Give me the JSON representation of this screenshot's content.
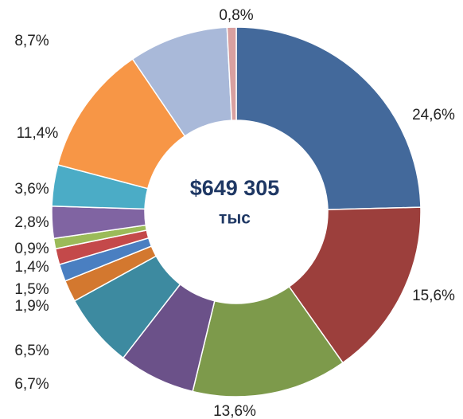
{
  "chart_data": {
    "type": "donut",
    "center_label": [
      "$649 305",
      "тыс"
    ],
    "values": [
      24.6,
      15.6,
      13.6,
      6.7,
      6.5,
      1.9,
      1.5,
      1.4,
      0.9,
      2.8,
      3.6,
      11.4,
      8.7,
      0.8
    ],
    "value_labels": [
      "24,6%",
      "15,6%",
      "13,6%",
      "6,7%",
      "6,5%",
      "1,9%",
      "1,5%",
      "1,4%",
      "0,9%",
      "2,8%",
      "3,6%",
      "11,4%",
      "8,7%",
      "0,8%"
    ],
    "colors": [
      "#43699b",
      "#9c3f3c",
      "#7d9a4b",
      "#6b5189",
      "#3d8aa0",
      "#d3782f",
      "#4a7fc1",
      "#c4494a",
      "#9bbb59",
      "#8064a2",
      "#4bacc6",
      "#f79646",
      "#a9b9d9",
      "#d9a0a0"
    ]
  }
}
